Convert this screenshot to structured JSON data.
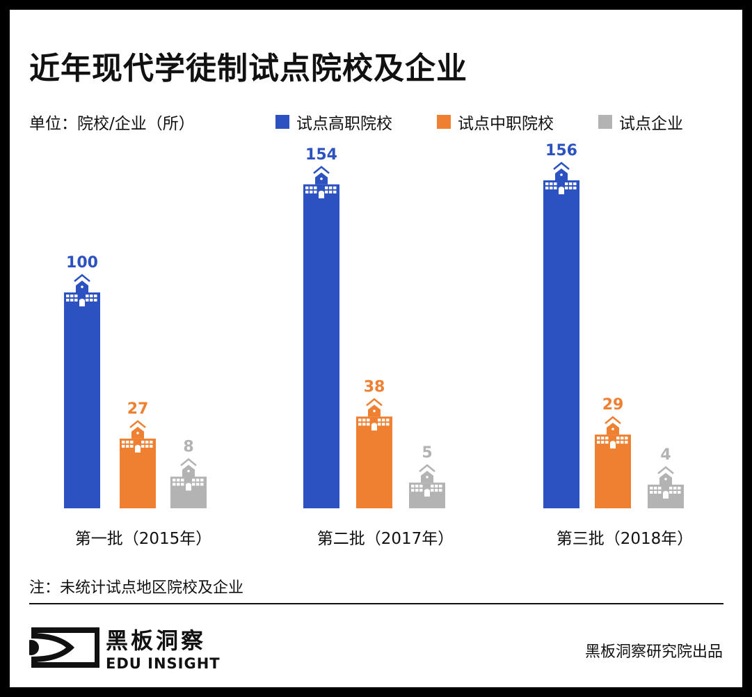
{
  "title": "近年现代学徒制试点院校及企业",
  "unit": "单位：院校/企业（所）",
  "note": "注：未统计试点地区院校及企业",
  "credit": "黑板洞察研究院出品",
  "logo": {
    "cn": "黑板洞察",
    "en": "EDU INSIGHT"
  },
  "chart_data": {
    "type": "bar",
    "categories": [
      "第一批（2015年）",
      "第二批（2017年）",
      "第三批（2018年）"
    ],
    "series": [
      {
        "name": "试点高职院校",
        "color": "#2c51c0",
        "values": [
          100,
          154,
          156
        ]
      },
      {
        "name": "试点中职院校",
        "color": "#ef7f31",
        "values": [
          27,
          38,
          29
        ]
      },
      {
        "name": "试点企业",
        "color": "#b3b3b3",
        "values": [
          8,
          5,
          4
        ]
      }
    ],
    "legend": "top",
    "grid": false,
    "icon": "school-building-icon"
  }
}
